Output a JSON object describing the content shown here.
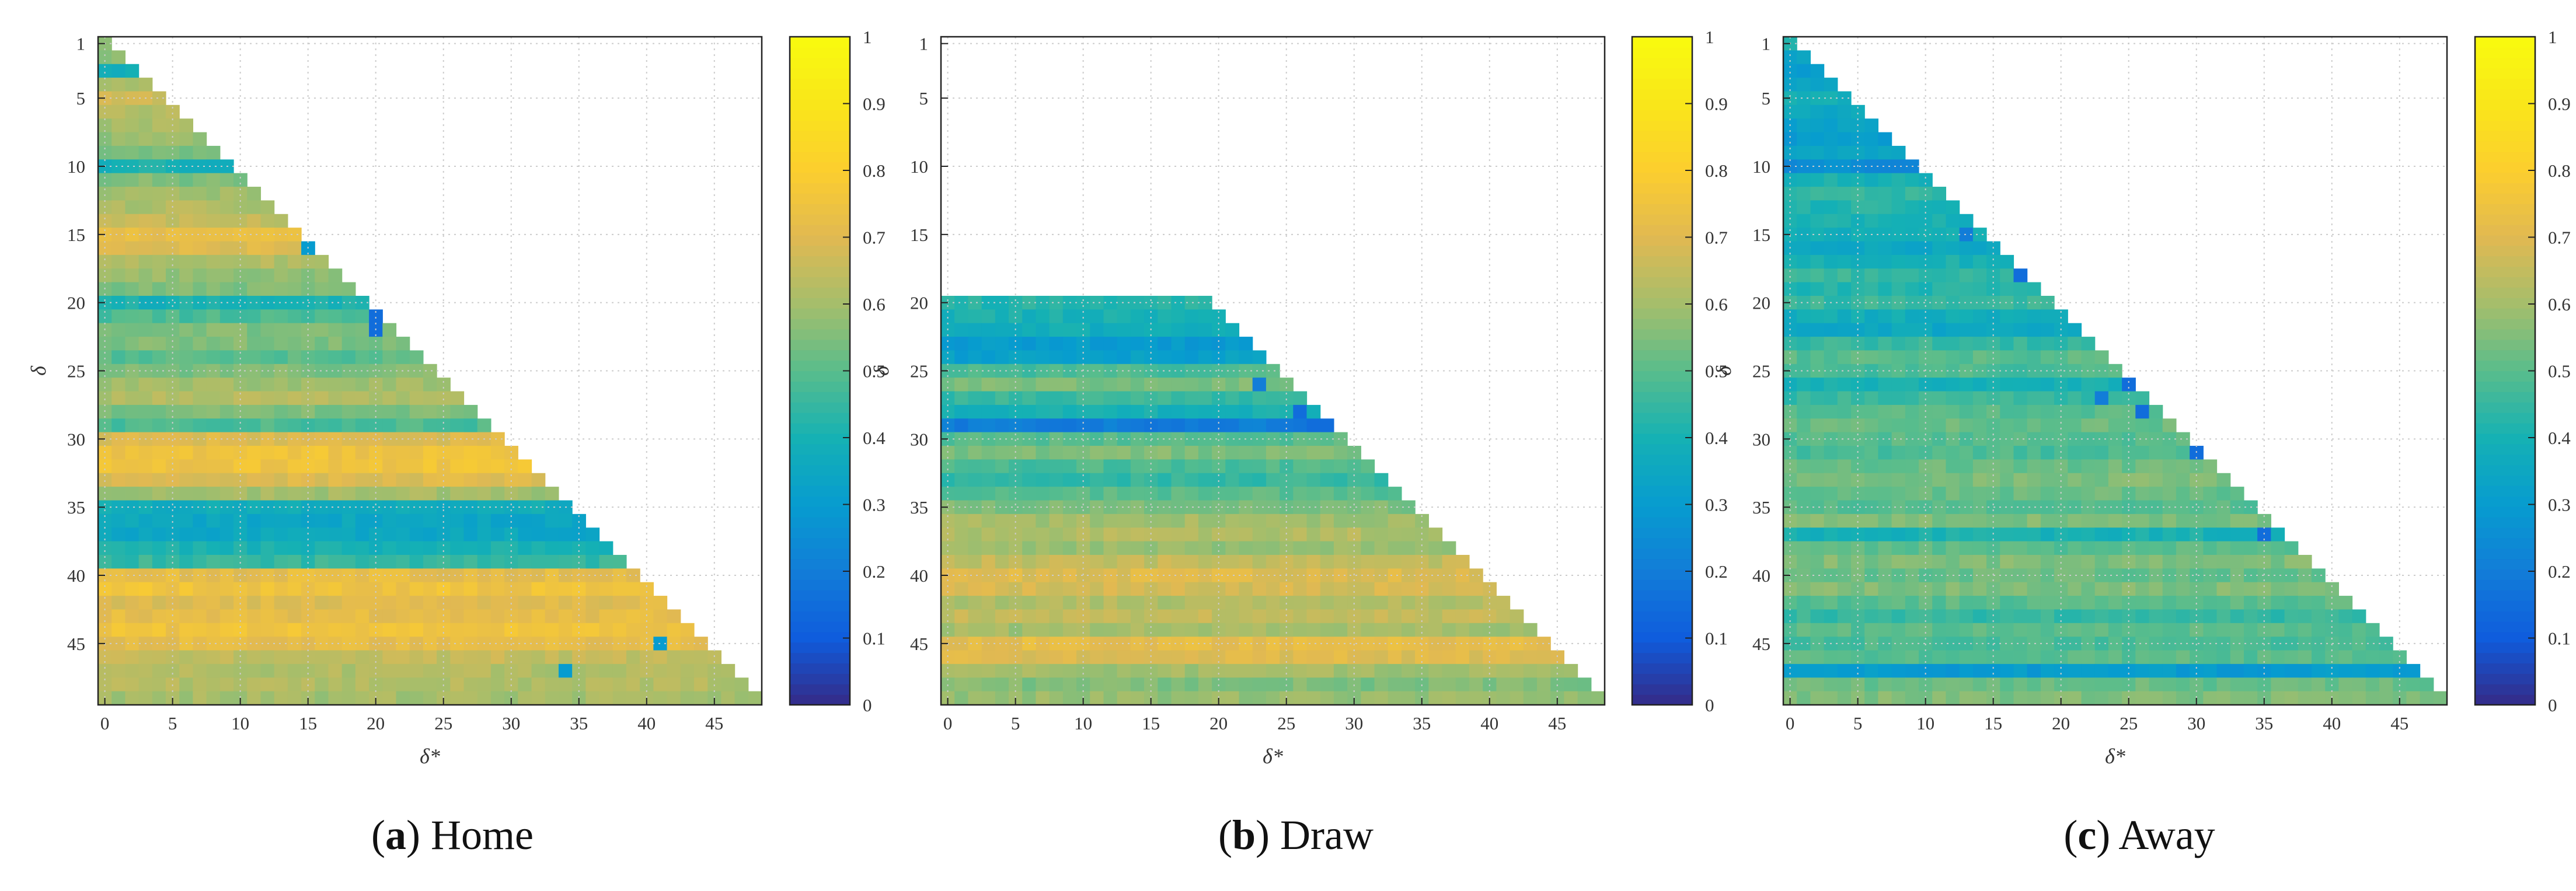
{
  "chart_data": [
    {
      "type": "heatmap",
      "panel": "a",
      "caption_tag": "a",
      "caption": "Home",
      "xlabel": "δ*",
      "ylabel": "δ",
      "x_ticks": [
        0,
        5,
        10,
        15,
        20,
        25,
        30,
        35,
        40,
        45
      ],
      "y_ticks": [
        1,
        5,
        10,
        15,
        20,
        25,
        30,
        35,
        40,
        45
      ],
      "x_range": [
        0,
        48
      ],
      "y_range": [
        1,
        49
      ],
      "colorbar": {
        "range": [
          0,
          1
        ],
        "ticks": [
          0,
          0.1,
          0.2,
          0.3,
          0.4,
          0.5,
          0.6,
          0.7,
          0.8,
          0.9,
          1
        ],
        "colormap": "parula"
      },
      "grid": true,
      "mask": "x < y (lower triangle shown)",
      "row_values": [
        0.55,
        0.58,
        0.38,
        0.62,
        0.68,
        0.62,
        0.6,
        0.58,
        0.55,
        0.4,
        0.55,
        0.6,
        0.62,
        0.65,
        0.72,
        0.7,
        0.62,
        0.58,
        0.55,
        0.4,
        0.48,
        0.55,
        0.55,
        0.5,
        0.55,
        0.6,
        0.62,
        0.55,
        0.48,
        0.7,
        0.75,
        0.75,
        0.7,
        0.6,
        0.38,
        0.35,
        0.35,
        0.4,
        0.45,
        0.72,
        0.75,
        0.7,
        0.72,
        0.75,
        0.72,
        0.65,
        0.62,
        0.62,
        0.6
      ],
      "anomalies": [
        {
          "x": 15,
          "y": 16,
          "value": 0.3
        },
        {
          "x": 20,
          "y": 21,
          "value": 0.15
        },
        {
          "x": 20,
          "y": 22,
          "value": 0.15
        },
        {
          "x": 34,
          "y": 47,
          "value": 0.3
        },
        {
          "x": 41,
          "y": 45,
          "value": 0.3
        }
      ]
    },
    {
      "type": "heatmap",
      "panel": "b",
      "caption_tag": "b",
      "caption": "Draw",
      "xlabel": "δ*",
      "ylabel": "δ",
      "x_ticks": [
        0,
        5,
        10,
        15,
        20,
        25,
        30,
        35,
        40,
        45
      ],
      "y_ticks": [
        1,
        5,
        10,
        15,
        20,
        25,
        30,
        35,
        40,
        45
      ],
      "x_range": [
        0,
        48
      ],
      "y_range": [
        1,
        49
      ],
      "colorbar": {
        "range": [
          0,
          1
        ],
        "ticks": [
          0,
          0.1,
          0.2,
          0.3,
          0.4,
          0.5,
          0.6,
          0.7,
          0.8,
          0.9,
          1
        ],
        "colormap": "parula"
      },
      "grid": true,
      "mask": "x < y and y ≥ 20",
      "row_values": [
        null,
        null,
        null,
        null,
        null,
        null,
        null,
        null,
        null,
        null,
        null,
        null,
        null,
        null,
        null,
        null,
        null,
        null,
        null,
        0.42,
        0.4,
        0.38,
        0.3,
        0.32,
        0.48,
        0.55,
        0.45,
        0.4,
        0.2,
        0.5,
        0.55,
        0.48,
        0.45,
        0.5,
        0.55,
        0.6,
        0.62,
        0.58,
        0.65,
        0.7,
        0.68,
        0.62,
        0.65,
        0.6,
        0.72,
        0.7,
        0.6,
        0.55,
        0.58
      ],
      "anomalies": [
        {
          "x": 23,
          "y": 26,
          "value": 0.2
        },
        {
          "x": 26,
          "y": 28,
          "value": 0.15
        },
        {
          "x": 27,
          "y": 29,
          "value": 0.15
        },
        {
          "x": 28,
          "y": 29,
          "value": 0.15
        }
      ]
    },
    {
      "type": "heatmap",
      "panel": "c",
      "caption_tag": "c",
      "caption": "Away",
      "xlabel": "δ*",
      "ylabel": "δ",
      "x_ticks": [
        0,
        5,
        10,
        15,
        20,
        25,
        30,
        35,
        40,
        45
      ],
      "y_ticks": [
        1,
        5,
        10,
        15,
        20,
        25,
        30,
        35,
        40,
        45
      ],
      "x_range": [
        0,
        48
      ],
      "y_range": [
        1,
        49
      ],
      "colorbar": {
        "range": [
          0,
          1
        ],
        "ticks": [
          0,
          0.1,
          0.2,
          0.3,
          0.4,
          0.5,
          0.6,
          0.7,
          0.8,
          0.9,
          1
        ],
        "colormap": "parula"
      },
      "grid": true,
      "mask": "x < y (lower triangle shown)",
      "row_values": [
        0.4,
        0.35,
        0.3,
        0.35,
        0.4,
        0.35,
        0.32,
        0.3,
        0.35,
        0.25,
        0.4,
        0.45,
        0.42,
        0.4,
        0.38,
        0.35,
        0.4,
        0.45,
        0.42,
        0.45,
        0.38,
        0.35,
        0.45,
        0.5,
        0.48,
        0.4,
        0.45,
        0.5,
        0.52,
        0.5,
        0.48,
        0.52,
        0.55,
        0.52,
        0.5,
        0.55,
        0.4,
        0.5,
        0.55,
        0.52,
        0.55,
        0.5,
        0.45,
        0.5,
        0.48,
        0.5,
        0.3,
        0.52,
        0.55
      ],
      "anomalies": [
        {
          "x": 13,
          "y": 15,
          "value": 0.2
        },
        {
          "x": 17,
          "y": 18,
          "value": 0.15
        },
        {
          "x": 23,
          "y": 27,
          "value": 0.2
        },
        {
          "x": 25,
          "y": 26,
          "value": 0.15
        },
        {
          "x": 26,
          "y": 28,
          "value": 0.15
        },
        {
          "x": 30,
          "y": 31,
          "value": 0.15
        },
        {
          "x": 35,
          "y": 37,
          "value": 0.15
        }
      ]
    }
  ]
}
